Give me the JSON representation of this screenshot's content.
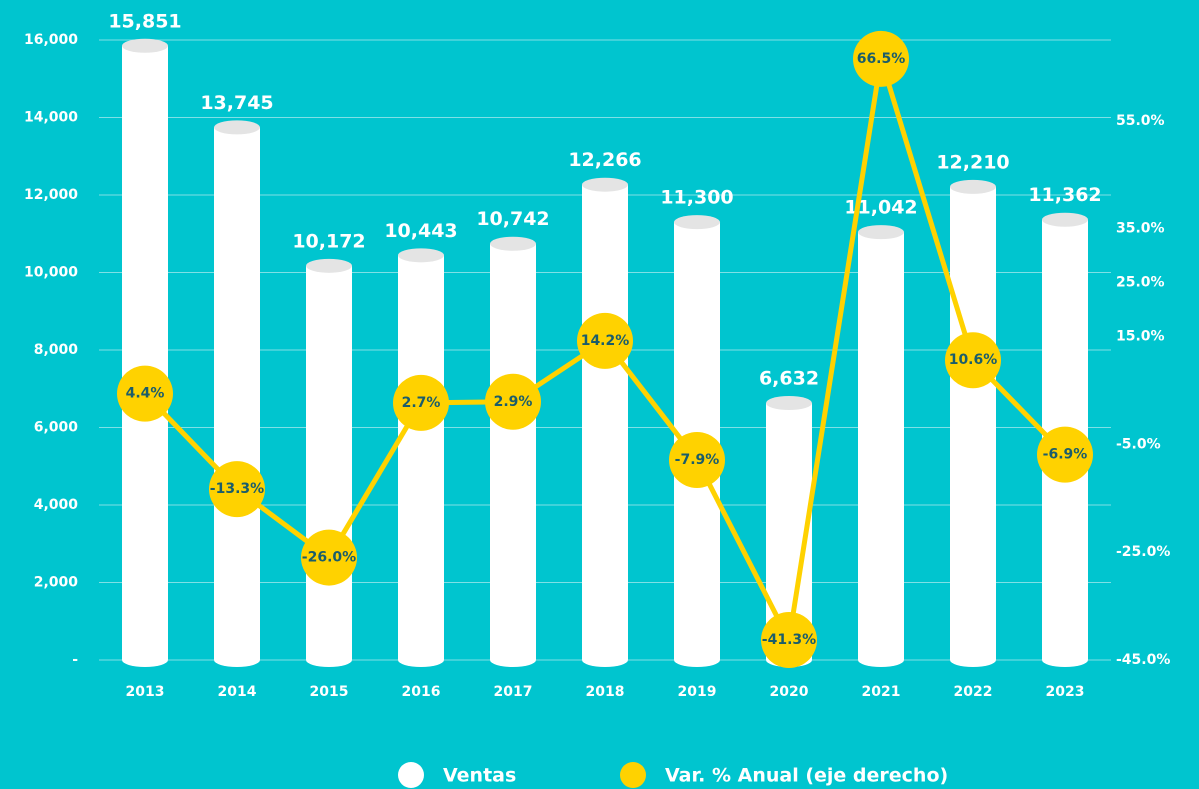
{
  "chart_data": {
    "type": "bar_line",
    "categories": [
      "2013",
      "2014",
      "2015",
      "2016",
      "2017",
      "2018",
      "2019",
      "2020",
      "2021",
      "2022",
      "2023"
    ],
    "series": [
      {
        "name": "Ventas",
        "type": "bar",
        "color": "#ffffff",
        "values": [
          15851,
          13745,
          10172,
          10443,
          10742,
          12266,
          11300,
          6632,
          11042,
          12210,
          11362
        ],
        "value_labels": [
          "15,851",
          "13,745",
          "10,172",
          "10,443",
          "10,742",
          "12,266",
          "11,300",
          "6,632",
          "11,042",
          "12,210",
          "11,362"
        ]
      },
      {
        "name": "Var. % Anual (eje derecho)",
        "type": "line",
        "axis": "y2",
        "color": "#ffd200",
        "values": [
          4.4,
          -13.3,
          -26.0,
          2.7,
          2.9,
          14.2,
          -7.9,
          -41.3,
          66.5,
          10.6,
          -6.9
        ],
        "value_labels": [
          "4.4%",
          "-13.3%",
          "-26.0%",
          "2.7%",
          "2.9%",
          "14.2%",
          "-7.9%",
          "-41.3%",
          "66.5%",
          "10.6%",
          "-6.9%"
        ]
      }
    ],
    "ylim": [
      0,
      16000
    ],
    "yticks": [
      {
        "value": 0,
        "label": "-"
      },
      {
        "value": 2000,
        "label": "2,000"
      },
      {
        "value": 4000,
        "label": "4,000"
      },
      {
        "value": 6000,
        "label": "6,000"
      },
      {
        "value": 8000,
        "label": "8,000"
      },
      {
        "value": 10000,
        "label": "10,000"
      },
      {
        "value": 12000,
        "label": "12,000"
      },
      {
        "value": 14000,
        "label": "14,000"
      },
      {
        "value": 16000,
        "label": "16,000"
      }
    ],
    "y2lim": [
      -45,
      70
    ],
    "y2ticks": [
      {
        "value": 55,
        "label": "55.0%"
      },
      {
        "value": 35,
        "label": "35.0%"
      },
      {
        "value": 25,
        "label": "25.0%"
      },
      {
        "value": 15,
        "label": "15.0%"
      },
      {
        "value": -5,
        "label": "-5.0%"
      },
      {
        "value": -25,
        "label": "-25.0%"
      },
      {
        "value": -45,
        "label": "-45.0%"
      }
    ],
    "grid": true,
    "legend": "bottom"
  }
}
